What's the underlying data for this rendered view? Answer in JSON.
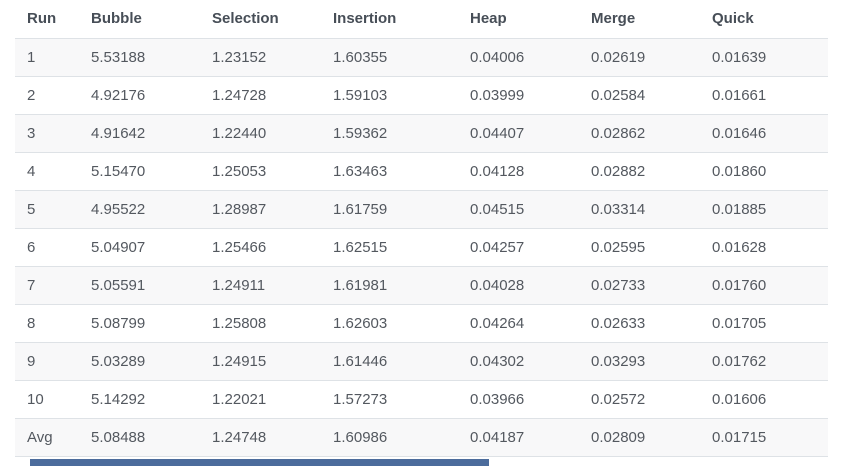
{
  "chart_data": {
    "type": "table",
    "columns": [
      "Run",
      "Bubble",
      "Selection",
      "Insertion",
      "Heap",
      "Merge",
      "Quick"
    ],
    "rows": [
      [
        "1",
        "5.53188",
        "1.23152",
        "1.60355",
        "0.04006",
        "0.02619",
        "0.01639"
      ],
      [
        "2",
        "4.92176",
        "1.24728",
        "1.59103",
        "0.03999",
        "0.02584",
        "0.01661"
      ],
      [
        "3",
        "4.91642",
        "1.22440",
        "1.59362",
        "0.04407",
        "0.02862",
        "0.01646"
      ],
      [
        "4",
        "5.15470",
        "1.25053",
        "1.63463",
        "0.04128",
        "0.02882",
        "0.01860"
      ],
      [
        "5",
        "4.95522",
        "1.28987",
        "1.61759",
        "0.04515",
        "0.03314",
        "0.01885"
      ],
      [
        "6",
        "5.04907",
        "1.25466",
        "1.62515",
        "0.04257",
        "0.02595",
        "0.01628"
      ],
      [
        "7",
        "5.05591",
        "1.24911",
        "1.61981",
        "0.04028",
        "0.02733",
        "0.01760"
      ],
      [
        "8",
        "5.08799",
        "1.25808",
        "1.62603",
        "0.04264",
        "0.02633",
        "0.01705"
      ],
      [
        "9",
        "5.03289",
        "1.24915",
        "1.61446",
        "0.04302",
        "0.03293",
        "0.01762"
      ],
      [
        "10",
        "5.14292",
        "1.22021",
        "1.57273",
        "0.03966",
        "0.02572",
        "0.01606"
      ],
      [
        "Avg",
        "5.08488",
        "1.24748",
        "1.60986",
        "0.04187",
        "0.02809",
        "0.01715"
      ]
    ],
    "layout": {
      "grid": "horizontal-row-borders",
      "zebra_striping": "odd-rows"
    }
  },
  "colors": {
    "stripe": "#f8f8f9",
    "border": "#dee2e6",
    "header_text": "#474e57",
    "body_text": "#53585f",
    "bottom_bar": "#4c6c9c"
  }
}
